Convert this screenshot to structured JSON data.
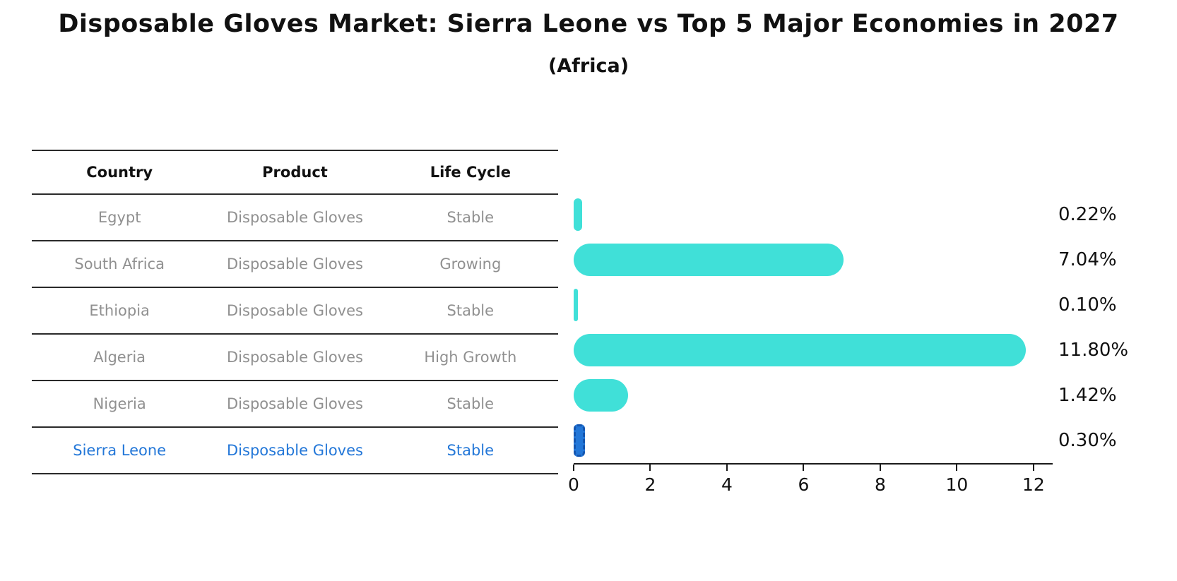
{
  "title": "Disposable Gloves Market: Sierra Leone vs Top 5 Major Economies in 2027",
  "subtitle": "(Africa)",
  "table": {
    "headers": [
      "Country",
      "Product",
      "Life Cycle"
    ],
    "rows": [
      {
        "country": "Egypt",
        "product": "Disposable Gloves",
        "life_cycle": "Stable",
        "highlight": false
      },
      {
        "country": "South Africa",
        "product": "Disposable Gloves",
        "life_cycle": "Growing",
        "highlight": false
      },
      {
        "country": "Ethiopia",
        "product": "Disposable Gloves",
        "life_cycle": "Stable",
        "highlight": false
      },
      {
        "country": "Algeria",
        "product": "Disposable Gloves",
        "life_cycle": "High Growth",
        "highlight": false
      },
      {
        "country": "Nigeria",
        "product": "Disposable Gloves",
        "life_cycle": "Stable",
        "highlight": false
      },
      {
        "country": "Sierra Leone",
        "product": "Disposable Gloves",
        "life_cycle": "Stable",
        "highlight": true
      }
    ]
  },
  "chart_data": {
    "type": "bar",
    "orientation": "horizontal",
    "title": "Disposable Gloves Market: Sierra Leone vs Top 5 Major Economies in 2027",
    "subtitle": "(Africa)",
    "categories": [
      "Egypt",
      "South Africa",
      "Ethiopia",
      "Algeria",
      "Nigeria",
      "Sierra Leone"
    ],
    "values": [
      0.22,
      7.04,
      0.1,
      11.8,
      1.42,
      0.3
    ],
    "value_labels": [
      "0.22%",
      "7.04%",
      "0.10%",
      "11.80%",
      "1.42%",
      "0.30%"
    ],
    "xticks": [
      0,
      2,
      4,
      6,
      8,
      10,
      12
    ],
    "xlim": [
      0,
      12.5
    ],
    "grid": false,
    "legend": false,
    "bar_color": "#40e0d8",
    "highlight_color": "#2377d8",
    "highlight_index": 5
  },
  "colors": {
    "text_dark": "#111111",
    "text_muted": "#909090",
    "highlight_text": "#2377d8",
    "line": "#2a2a2a"
  }
}
